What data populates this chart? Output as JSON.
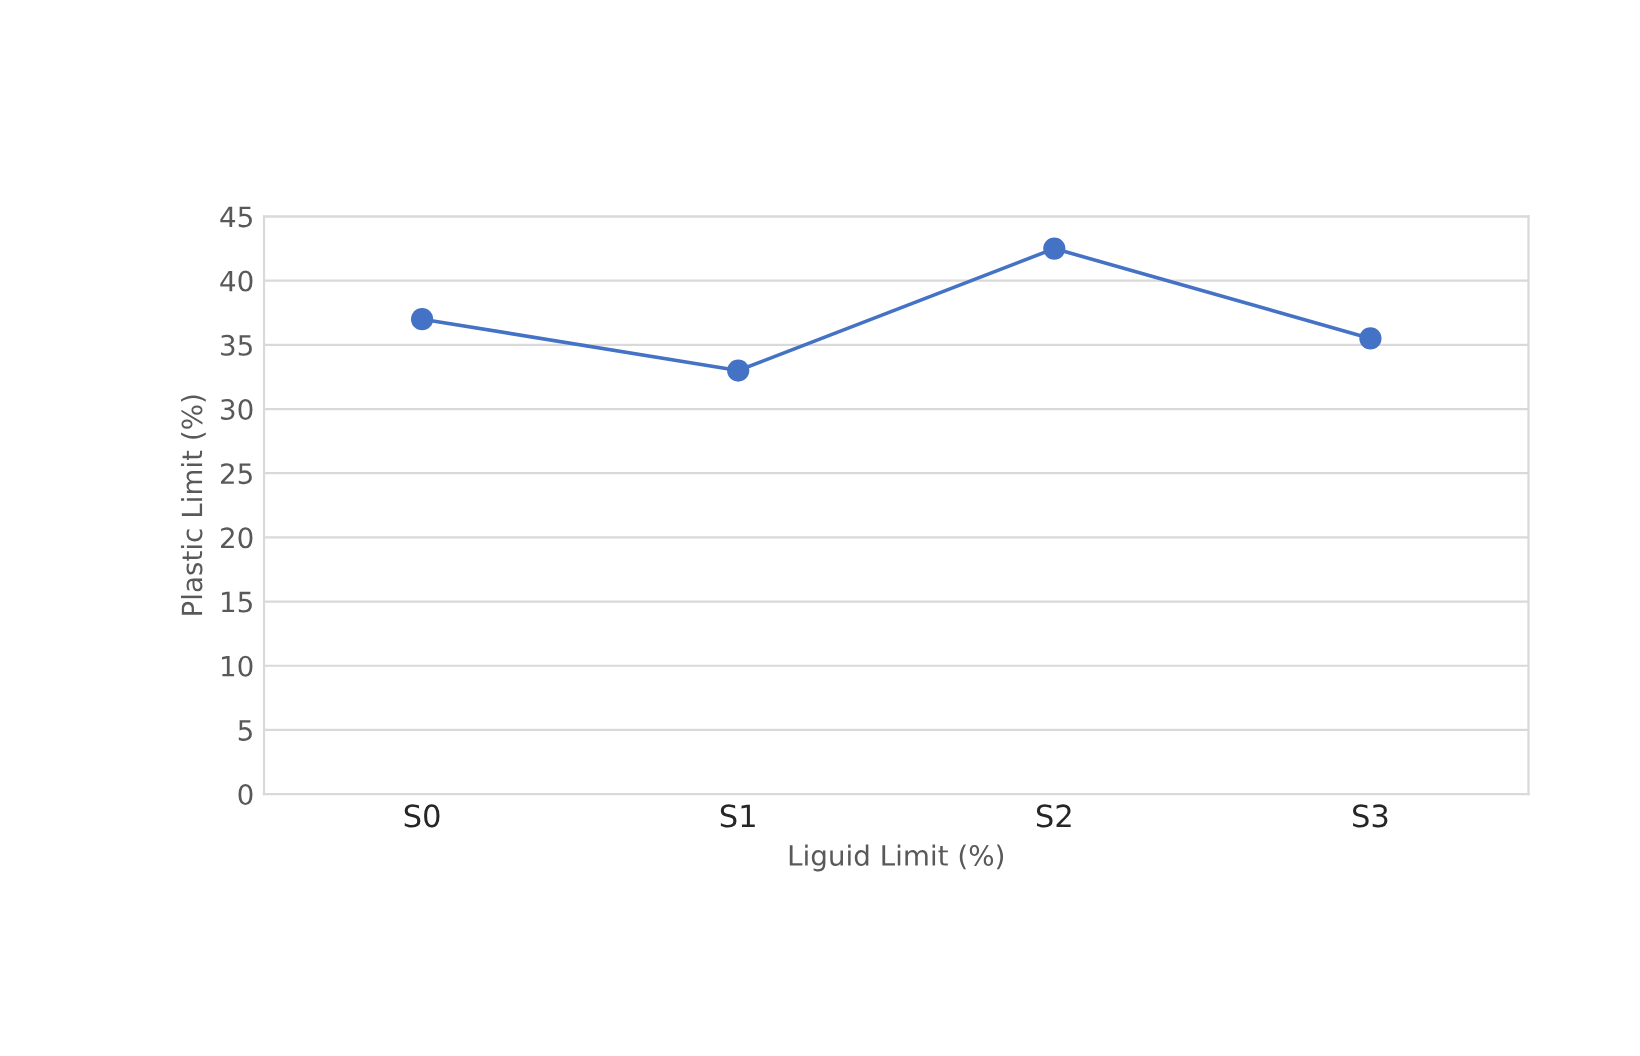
{
  "chart_data": {
    "type": "line",
    "xlabel": "Liguid Limit (%)",
    "ylabel": "Plastic Limit (%)",
    "categories": [
      "S0",
      "S1",
      "S2",
      "S3"
    ],
    "series": [
      {
        "color": "#4472c4",
        "values": [
          37,
          33,
          42.5,
          35.5
        ]
      }
    ],
    "ylim": [
      0,
      45
    ],
    "yticks": [
      0,
      5,
      10,
      15,
      20,
      25,
      30,
      35,
      40,
      45
    ],
    "grid": "y",
    "marker": "circle",
    "line_style": "solid"
  }
}
